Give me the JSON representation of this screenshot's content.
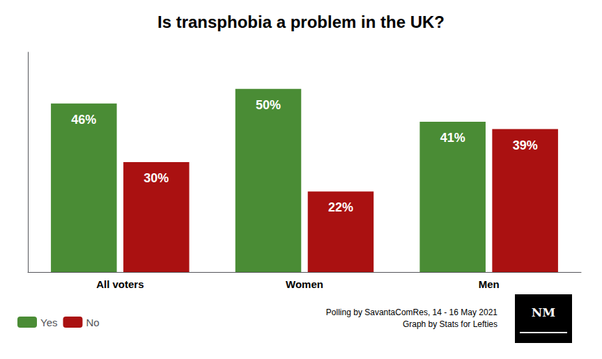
{
  "chart_data": {
    "type": "bar",
    "title": "Is transphobia a problem in the UK?",
    "categories": [
      "All voters",
      "Women",
      "Men"
    ],
    "series": [
      {
        "name": "Yes",
        "color": "#4a8c35",
        "values": [
          46,
          50,
          41
        ],
        "value_labels": [
          "46%",
          "50%",
          "41%"
        ]
      },
      {
        "name": "No",
        "color": "#aa1111",
        "values": [
          30,
          22,
          39
        ],
        "value_labels": [
          "30%",
          "22%",
          "39%"
        ]
      }
    ],
    "ylim": [
      0,
      60
    ],
    "grid": false,
    "legend": "bottom left",
    "data_labels": true,
    "tick_labels": "x",
    "annotations": [
      "Polling by SavantaComRes, 14 - 16 May 2021\nGraph by Stats for Lefties",
      "NM"
    ]
  }
}
